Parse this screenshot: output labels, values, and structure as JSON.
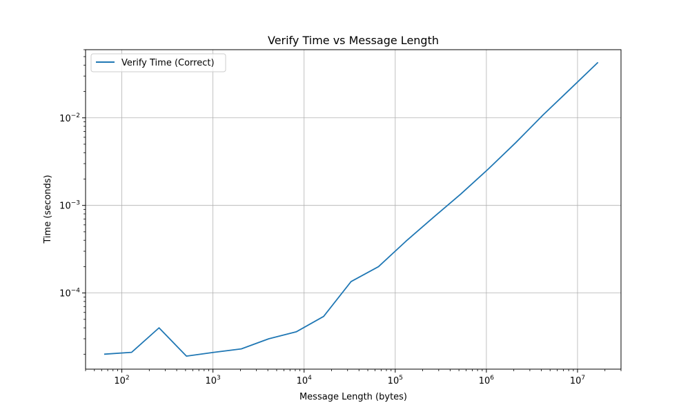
{
  "chart_data": {
    "type": "line",
    "title": "Verify Time vs Message Length",
    "xlabel": "Message Length (bytes)",
    "ylabel": "Time (seconds)",
    "xscale": "log",
    "yscale": "log",
    "xlim": [
      40,
      30000000
    ],
    "ylim": [
      1.35e-05,
      0.06
    ],
    "grid": true,
    "legend_position": "top-left",
    "x_ticks": [
      {
        "value": 100,
        "base": "10",
        "exp": "2"
      },
      {
        "value": 1000,
        "base": "10",
        "exp": "3"
      },
      {
        "value": 10000,
        "base": "10",
        "exp": "4"
      },
      {
        "value": 100000,
        "base": "10",
        "exp": "5"
      },
      {
        "value": 1000000,
        "base": "10",
        "exp": "6"
      },
      {
        "value": 10000000,
        "base": "10",
        "exp": "7"
      }
    ],
    "y_ticks": [
      {
        "value": 0.0001,
        "base": "10",
        "exp": "−4"
      },
      {
        "value": 0.001,
        "base": "10",
        "exp": "−3"
      },
      {
        "value": 0.01,
        "base": "10",
        "exp": "−2"
      }
    ],
    "series": [
      {
        "name": "Verify Time (Correct)",
        "color": "#1f77b4",
        "x": [
          64,
          128,
          256,
          512,
          1024,
          2048,
          4096,
          8192,
          16384,
          32768,
          65536,
          131072,
          262144,
          524288,
          1048576,
          2097152,
          4194304,
          8388608,
          16777216
        ],
        "y": [
          2e-05,
          2.1e-05,
          4e-05,
          1.9e-05,
          2.1e-05,
          2.3e-05,
          3e-05,
          3.6e-05,
          5.4e-05,
          0.000135,
          0.0002,
          0.00039,
          0.00073,
          0.00135,
          0.0026,
          0.0052,
          0.0108,
          0.0215,
          0.043
        ]
      }
    ]
  }
}
